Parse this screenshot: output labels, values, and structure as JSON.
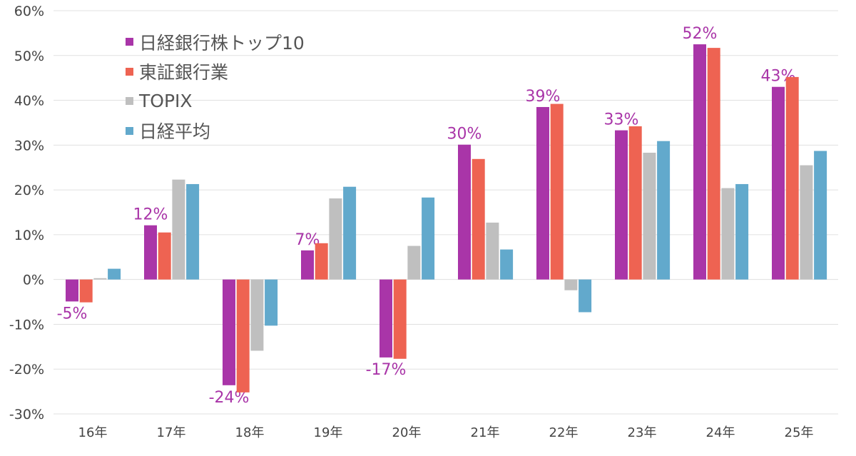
{
  "chart_data": {
    "type": "bar",
    "categories": [
      "16年",
      "17年",
      "18年",
      "19年",
      "20年",
      "21年",
      "22年",
      "23年",
      "24年",
      "25年"
    ],
    "ylim": [
      -30,
      60
    ],
    "yticks": [
      "-30%",
      "-20%",
      "-10%",
      "0%",
      "10%",
      "20%",
      "30%",
      "40%",
      "50%",
      "60%"
    ],
    "grid": true,
    "legend_position": "top-left",
    "series": [
      {
        "name": "日経銀行株トップ10",
        "color": "#a935a8",
        "values": [
          -4.9,
          12.1,
          -23.6,
          6.5,
          -17.4,
          30.1,
          38.5,
          33.3,
          52.5,
          43.0
        ],
        "data_labels": [
          "-5%",
          "12%",
          "-24%",
          "7%",
          "-17%",
          "30%",
          "39%",
          "33%",
          "52%",
          "43%"
        ]
      },
      {
        "name": "東証銀行業",
        "color": "#ee6352",
        "values": [
          -5.1,
          10.5,
          -25.2,
          8.1,
          -17.7,
          26.9,
          39.2,
          34.2,
          51.7,
          45.2
        ]
      },
      {
        "name": "TOPIX",
        "color": "#bfbfbf",
        "values": [
          0.3,
          22.3,
          -15.9,
          18.1,
          7.5,
          12.7,
          -2.4,
          28.3,
          20.4,
          25.5
        ]
      },
      {
        "name": "日経平均",
        "color": "#62a9cc",
        "values": [
          2.4,
          21.3,
          -10.3,
          20.7,
          18.3,
          6.7,
          -7.3,
          30.9,
          21.3,
          28.7
        ]
      }
    ]
  }
}
